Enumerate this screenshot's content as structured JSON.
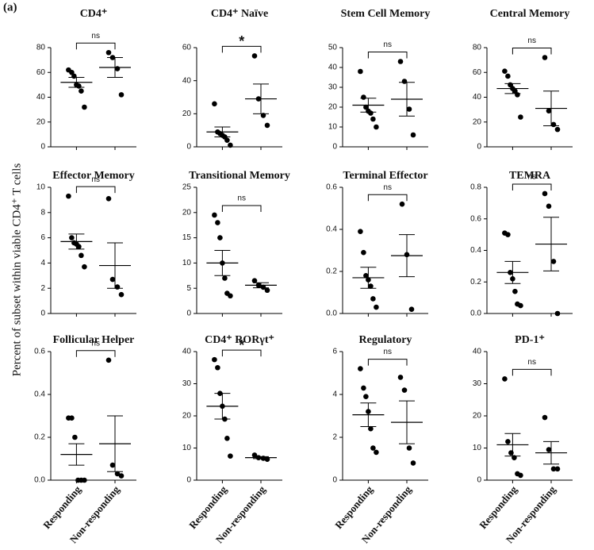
{
  "panel_label": "(a)",
  "y_axis_label": "Percent of subset within viable CD4⁺ T cells",
  "chart_data": [
    {
      "type": "dot",
      "title": "CD4⁺",
      "significance": "ns",
      "ylim": [
        0,
        80
      ],
      "yticks": [
        0,
        20,
        40,
        60,
        80
      ],
      "groups": [
        {
          "values": [
            62,
            60,
            57,
            50,
            49,
            45,
            32
          ],
          "mean": 52,
          "sem": 4
        },
        {
          "values": [
            76,
            72,
            63,
            42
          ],
          "mean": 64,
          "sem": 8
        }
      ]
    },
    {
      "type": "dot",
      "title": "CD4⁺ Naïve",
      "significance": "*",
      "ylim": [
        0,
        60
      ],
      "yticks": [
        0,
        20,
        40,
        60
      ],
      "groups": [
        {
          "values": [
            26,
            9,
            8,
            7,
            6,
            4,
            1
          ],
          "mean": 9,
          "sem": 3
        },
        {
          "values": [
            55,
            29,
            19,
            13
          ],
          "mean": 29,
          "sem": 9
        }
      ]
    },
    {
      "type": "dot",
      "title": "Stem Cell Memory",
      "significance": "ns",
      "ylim": [
        0,
        50
      ],
      "yticks": [
        0,
        10,
        20,
        30,
        40,
        50
      ],
      "groups": [
        {
          "values": [
            38,
            25,
            20,
            18,
            17,
            14,
            10
          ],
          "mean": 21,
          "sem": 3.5
        },
        {
          "values": [
            43,
            33,
            19,
            6
          ],
          "mean": 24,
          "sem": 8.5
        }
      ]
    },
    {
      "type": "dot",
      "title": "Central Memory",
      "significance": "ns",
      "ylim": [
        0,
        80
      ],
      "yticks": [
        0,
        20,
        40,
        60,
        80
      ],
      "groups": [
        {
          "values": [
            61,
            57,
            50,
            47,
            45,
            42,
            24
          ],
          "mean": 47,
          "sem": 4
        },
        {
          "values": [
            72,
            29,
            18,
            14
          ],
          "mean": 31,
          "sem": 14
        }
      ]
    },
    {
      "type": "dot",
      "title": "Effector Memory",
      "significance": "ns",
      "ylim": [
        0,
        10
      ],
      "yticks": [
        0,
        2,
        4,
        6,
        8,
        10
      ],
      "groups": [
        {
          "values": [
            9.3,
            6.0,
            5.6,
            5.5,
            5.3,
            4.6,
            3.7
          ],
          "mean": 5.7,
          "sem": 0.6
        },
        {
          "values": [
            9.1,
            2.7,
            2.1,
            1.5
          ],
          "mean": 3.8,
          "sem": 1.8
        }
      ]
    },
    {
      "type": "dot",
      "title": "Transitional Memory",
      "significance": "ns",
      "ylim": [
        0,
        25
      ],
      "yticks": [
        0,
        5,
        10,
        15,
        20,
        25
      ],
      "groups": [
        {
          "values": [
            19.5,
            18,
            15,
            10,
            7,
            4,
            3.5
          ],
          "mean": 10,
          "sem": 2.5
        },
        {
          "values": [
            6.5,
            5.6,
            5.2,
            4.6
          ],
          "mean": 5.6,
          "sem": 0.5
        }
      ]
    },
    {
      "type": "dot",
      "title": "Terminal Effector",
      "significance": "ns",
      "ylim": [
        0,
        0.6
      ],
      "yticks": [
        {
          "value": 0,
          "label": "0.0"
        },
        0.2,
        0.4,
        0.6
      ],
      "groups": [
        {
          "values": [
            0.39,
            0.29,
            0.18,
            0.16,
            0.13,
            0.07,
            0.03
          ],
          "mean": 0.17,
          "sem": 0.05
        },
        {
          "values": [
            0.52,
            0.28,
            0.02
          ],
          "mean": 0.275,
          "sem": 0.1
        }
      ]
    },
    {
      "type": "dot",
      "title": "TEMRA",
      "significance": "ns",
      "ylim": [
        0,
        0.8
      ],
      "yticks": [
        {
          "value": 0,
          "label": "0.0"
        },
        0.2,
        0.4,
        0.6,
        0.8
      ],
      "groups": [
        {
          "values": [
            0.51,
            0.5,
            0.26,
            0.22,
            0.14,
            0.06,
            0.05
          ],
          "mean": 0.26,
          "sem": 0.07
        },
        {
          "values": [
            0.76,
            0.68,
            0.33,
            0.0
          ],
          "mean": 0.44,
          "sem": 0.17
        }
      ]
    },
    {
      "type": "dot",
      "title": "Follicular Helper",
      "significance": "ns",
      "ylim": [
        0,
        0.6
      ],
      "yticks": [
        {
          "value": 0,
          "label": "0.0"
        },
        0.2,
        0.4,
        0.6
      ],
      "categories": [
        "Responding",
        "Non-responding"
      ],
      "groups": [
        {
          "values": [
            0.29,
            0.29,
            0.2,
            0.0,
            0.0,
            0.0
          ],
          "mean": 0.12,
          "sem": 0.05
        },
        {
          "values": [
            0.56,
            0.07,
            0.03,
            0.02
          ],
          "mean": 0.17,
          "sem": 0.13
        }
      ]
    },
    {
      "type": "dot",
      "title": "CD4⁺ RORγt⁺",
      "significance": "*",
      "ylim": [
        0,
        40
      ],
      "yticks": [
        0,
        10,
        20,
        30,
        40
      ],
      "categories": [
        "Responding",
        "Non-responding"
      ],
      "groups": [
        {
          "values": [
            37.5,
            35,
            27,
            23,
            19,
            13,
            7.5
          ],
          "mean": 23,
          "sem": 4
        },
        {
          "values": [
            7.8,
            7,
            6.8,
            6.5
          ],
          "mean": 7,
          "sem": 0.3
        }
      ]
    },
    {
      "type": "dot",
      "title": "Regulatory",
      "significance": "ns",
      "ylim": [
        0,
        6
      ],
      "yticks": [
        0,
        2,
        4,
        6
      ],
      "categories": [
        "Responding",
        "Non-responding"
      ],
      "groups": [
        {
          "values": [
            5.2,
            4.3,
            3.9,
            3.2,
            2.4,
            1.5,
            1.3
          ],
          "mean": 3.05,
          "sem": 0.55
        },
        {
          "values": [
            4.8,
            4.2,
            1.5,
            0.8
          ],
          "mean": 2.7,
          "sem": 1
        }
      ]
    },
    {
      "type": "dot",
      "title": "PD-1⁺",
      "significance": "ns",
      "ylim": [
        0,
        40
      ],
      "yticks": [
        0,
        10,
        20,
        30,
        40
      ],
      "categories": [
        "Responding",
        "Non-responding"
      ],
      "groups": [
        {
          "values": [
            31.5,
            12,
            8.5,
            7,
            2,
            1.5
          ],
          "mean": 11,
          "sem": 3.5
        },
        {
          "values": [
            19.5,
            9.5,
            3.5,
            3.5
          ],
          "mean": 8.5,
          "sem": 3.5
        }
      ]
    }
  ]
}
